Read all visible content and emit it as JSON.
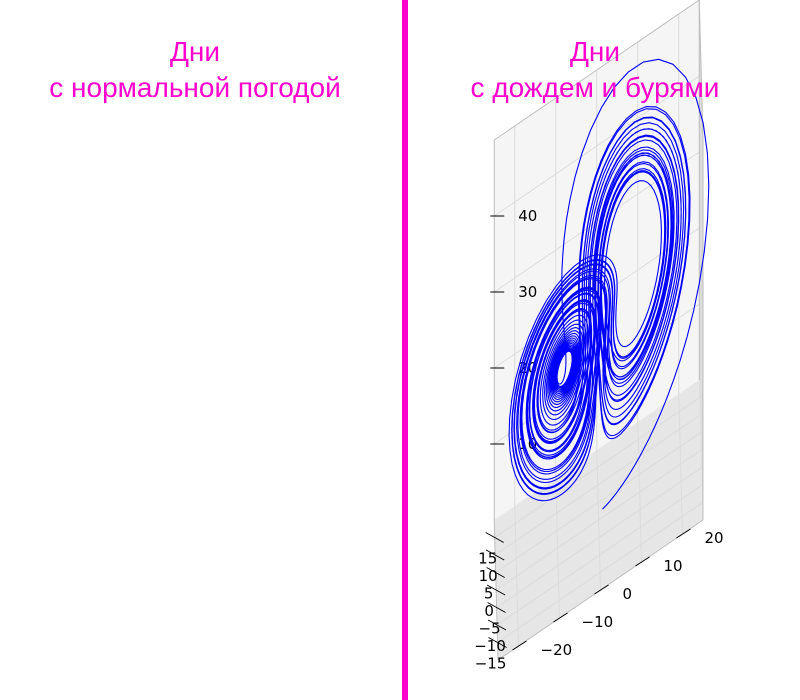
{
  "chart_data": {
    "type": "line",
    "projection": "3d",
    "title": "",
    "xlabel": "",
    "ylabel": "",
    "zlabel": "",
    "xlim": [
      -20,
      20
    ],
    "ylim": [
      -25,
      25
    ],
    "zlim": [
      0,
      50
    ],
    "x_ticks": [
      "−15",
      "−10",
      "−5",
      "0",
      "5",
      "10",
      "15"
    ],
    "y_ticks": [
      "−20",
      "−10",
      "0",
      "10",
      "20"
    ],
    "z_ticks": [
      "10",
      "20",
      "30",
      "40"
    ],
    "grid": true,
    "series": [
      {
        "system": "Lorenz attractor",
        "sigma": 10,
        "rho": 28,
        "beta": 2.667,
        "initial_point": [
          0,
          1,
          1.05
        ],
        "dt": 0.01,
        "steps": 5000,
        "color": "#0000ff"
      }
    ],
    "annotations": [
      {
        "lines": [
          "Дни",
          "с нормальной погодой"
        ],
        "color": "#ff00cc"
      },
      {
        "lines": [
          "Дни",
          "с дождем и бурями"
        ],
        "color": "#ff00cc"
      }
    ],
    "divider_color": "#ff00cc"
  }
}
